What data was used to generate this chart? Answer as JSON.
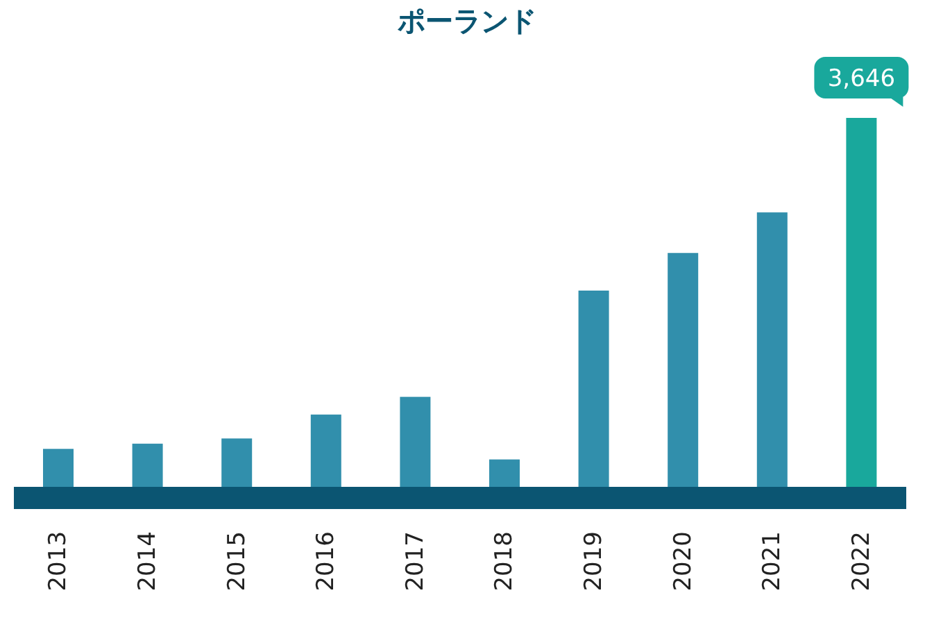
{
  "chart_data": {
    "type": "bar",
    "title": "ポーランド",
    "categories": [
      "2013",
      "2014",
      "2015",
      "2016",
      "2017",
      "2018",
      "2019",
      "2020",
      "2021",
      "2022"
    ],
    "values": [
      470,
      520,
      570,
      800,
      970,
      370,
      1990,
      2350,
      2740,
      3646
    ],
    "colors": [
      "#318fac",
      "#318fac",
      "#318fac",
      "#318fac",
      "#318fac",
      "#318fac",
      "#318fac",
      "#318fac",
      "#318fac",
      "#19a89c"
    ],
    "value_labels": [
      null,
      null,
      null,
      null,
      null,
      null,
      null,
      null,
      null,
      "3,646"
    ],
    "grid": false,
    "legend": false
  }
}
